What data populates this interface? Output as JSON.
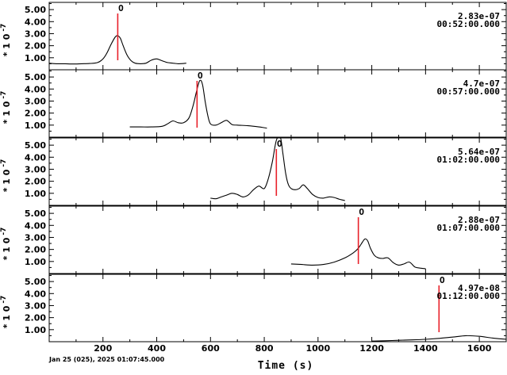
{
  "chart_data": {
    "type": "line",
    "xlabel": "Time (s)",
    "date_label": "Jan 25 (025), 2025 01:07:45.000",
    "ylabel_prefix": "* 1 0",
    "ylabel_exp": "-7",
    "xlim": [
      0,
      1700
    ],
    "ylim": [
      0,
      5.6
    ],
    "x_ticks": [
      200,
      400,
      600,
      800,
      1000,
      1200,
      1400,
      1600
    ],
    "x_tick_labels": [
      "200",
      "400",
      "600",
      "800",
      "1000",
      "1200",
      "1400",
      "1600"
    ],
    "y_ticks": [
      1,
      2,
      3,
      4,
      5
    ],
    "y_tick_labels": [
      "1.00",
      "2.00",
      "3.00",
      "4.00",
      "5.00"
    ],
    "marker_label": "O",
    "panels": [
      {
        "amplitude": "2.83e-07",
        "time": "00:52:00.000",
        "marker_x": 255,
        "x": [
          0,
          30,
          60,
          90,
          120,
          150,
          180,
          200,
          215,
          230,
          245,
          255,
          265,
          275,
          290,
          305,
          320,
          340,
          360,
          380,
          400,
          420,
          440,
          460,
          480,
          500,
          510
        ],
        "y": [
          0.55,
          0.5,
          0.5,
          0.48,
          0.5,
          0.52,
          0.6,
          0.9,
          1.4,
          2.1,
          2.7,
          2.83,
          2.6,
          2.0,
          1.2,
          0.75,
          0.55,
          0.5,
          0.55,
          0.8,
          0.9,
          0.75,
          0.6,
          0.55,
          0.5,
          0.52,
          0.55
        ]
      },
      {
        "amplitude": "4.7e-07",
        "time": "00:57:00.000",
        "marker_x": 550,
        "x": [
          300,
          340,
          380,
          420,
          440,
          460,
          480,
          500,
          520,
          535,
          548,
          560,
          570,
          580,
          590,
          600,
          620,
          640,
          660,
          680,
          700,
          740,
          780,
          810
        ],
        "y": [
          0.85,
          0.85,
          0.85,
          0.9,
          1.1,
          1.35,
          1.2,
          1.2,
          1.6,
          2.6,
          3.8,
          4.7,
          4.4,
          3.0,
          1.8,
          1.1,
          1.0,
          1.2,
          1.4,
          1.05,
          1.0,
          0.95,
          0.85,
          0.75
        ]
      },
      {
        "amplitude": "5.64e-07",
        "time": "01:02:00.000",
        "marker_x": 845,
        "x": [
          600,
          620,
          640,
          660,
          680,
          700,
          720,
          740,
          760,
          780,
          800,
          815,
          830,
          845,
          860,
          870,
          880,
          890,
          900,
          915,
          930,
          945,
          960,
          980,
          1000,
          1020,
          1040,
          1060,
          1080,
          1100
        ],
        "y": [
          0.6,
          0.55,
          0.7,
          0.85,
          1.0,
          0.9,
          0.7,
          0.85,
          1.3,
          1.6,
          1.4,
          2.2,
          3.6,
          5.4,
          5.64,
          4.2,
          2.6,
          1.7,
          1.4,
          1.3,
          1.4,
          1.7,
          1.4,
          0.9,
          0.65,
          0.6,
          0.7,
          0.65,
          0.5,
          0.4
        ]
      },
      {
        "amplitude": "2.88e-07",
        "time": "01:07:00.000",
        "marker_x": 1150,
        "x": [
          900,
          940,
          980,
          1020,
          1060,
          1100,
          1130,
          1150,
          1165,
          1175,
          1185,
          1195,
          1210,
          1225,
          1240,
          1260,
          1280,
          1300,
          1320,
          1340,
          1360,
          1380,
          1400
        ],
        "y": [
          0.8,
          0.75,
          0.7,
          0.75,
          0.95,
          1.3,
          1.7,
          2.1,
          2.6,
          2.88,
          2.7,
          2.1,
          1.5,
          1.3,
          1.25,
          1.3,
          0.9,
          0.7,
          0.8,
          0.95,
          0.55,
          0.45,
          0.4
        ]
      },
      {
        "amplitude": "4.97e-08",
        "time": "01:12:00.000",
        "marker_x": 1450,
        "x": [
          1200,
          1250,
          1300,
          1350,
          1400,
          1450,
          1500,
          1550,
          1600,
          1650,
          1700
        ],
        "y": [
          0.05,
          0.08,
          0.12,
          0.15,
          0.2,
          0.28,
          0.38,
          0.5,
          0.45,
          0.3,
          0.2
        ]
      }
    ]
  }
}
